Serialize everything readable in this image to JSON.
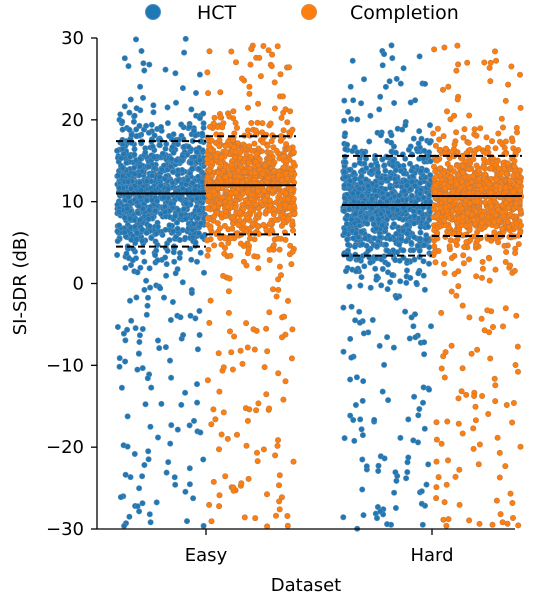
{
  "chart_data": {
    "type": "scatter",
    "subtype": "jittered strip plot with median and 5th/95th percentile lines",
    "title": "",
    "xlabel": "Dataset",
    "ylabel": "SI-SDR (dB)",
    "categories": [
      "Easy",
      "Hard"
    ],
    "ylim": [
      -30,
      30
    ],
    "yticks": [
      -30,
      -20,
      -10,
      0,
      10,
      20,
      30
    ],
    "ytick_labels": [
      "−30",
      "−20",
      "−10",
      "0",
      "10",
      "20",
      "30"
    ],
    "grid": false,
    "legend": {
      "position": "top-center",
      "entries": [
        "HCT",
        "Completion"
      ]
    },
    "series": [
      {
        "name": "HCT",
        "color": "#1f77b4",
        "stats": [
          {
            "category": "Easy",
            "median": 11.0,
            "p5": 4.5,
            "p95": 17.4
          },
          {
            "category": "Hard",
            "median": 9.6,
            "p5": 3.4,
            "p95": 15.6
          }
        ]
      },
      {
        "name": "Completion",
        "color": "#ff7f0e",
        "stats": [
          {
            "category": "Easy",
            "median": 12.0,
            "p5": 6.0,
            "p95": 18.0
          },
          {
            "category": "Hard",
            "median": 10.7,
            "p5": 5.8,
            "p95": 15.6
          }
        ]
      }
    ]
  }
}
